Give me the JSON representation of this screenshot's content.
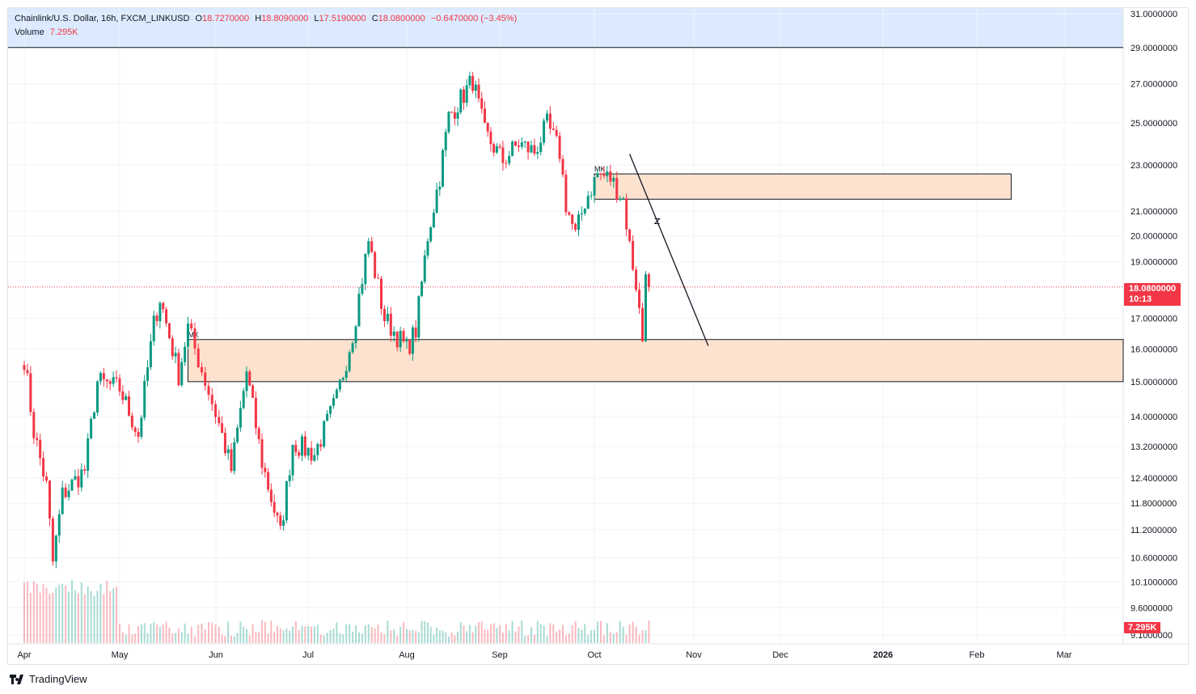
{
  "header": {
    "symbol_line": "Chainlink/U.S. Dollar, 16h, FXCM_LINKUSD",
    "open_label": "O",
    "open": "18.7270000",
    "high_label": "H",
    "high": "18.8090000",
    "low_label": "L",
    "low": "17.5190000",
    "close_label": "C",
    "close": "18.0800000",
    "change": "−0.6470000 (−3.45%)",
    "volume_label": "Volume",
    "volume": "7.295K"
  },
  "price_tag": {
    "price": "18.0800000",
    "countdown": "10:13"
  },
  "volume_tag": "7.295K",
  "footer": {
    "brand": "TradingView",
    "logo": "TV-logo-icon"
  },
  "colors": {
    "up": "#089981",
    "down": "#f23645",
    "zone": "#fde3cf",
    "header_bg": "#dbeafe"
  },
  "chart_data": {
    "type": "candlestick",
    "scale": "log",
    "ylim": [
      9.1,
      31.0
    ],
    "y_ticks": [
      "31.0000000",
      "29.0000000",
      "27.0000000",
      "25.0000000",
      "23.0000000",
      "21.0000000",
      "20.0000000",
      "19.0000000",
      "17.0000000",
      "16.0000000",
      "15.0000000",
      "14.0000000",
      "13.2000000",
      "12.4000000",
      "11.8000000",
      "11.2000000",
      "10.6000000",
      "10.1000000",
      "9.6000000",
      "9.1000000"
    ],
    "x_ticks": [
      "Apr",
      "May",
      "Jun",
      "Jul",
      "Aug",
      "Sep",
      "Oct",
      "Nov",
      "Dec",
      "2026",
      "Feb",
      "Mar"
    ],
    "last_close": 18.08,
    "key_points": [
      {
        "date": "Apr 1",
        "price": 15.7
      },
      {
        "date": "Apr 4",
        "price": 13.6
      },
      {
        "date": "Apr 8",
        "price": 12.2
      },
      {
        "date": "Apr 10",
        "price": 10.5
      },
      {
        "date": "Apr 13",
        "price": 12.0
      },
      {
        "date": "Apr 20",
        "price": 12.6
      },
      {
        "date": "Apr 24",
        "price": 15.0
      },
      {
        "date": "May 1",
        "price": 14.8
      },
      {
        "date": "May 7",
        "price": 13.5
      },
      {
        "date": "May 12",
        "price": 16.8
      },
      {
        "date": "May 14",
        "price": 17.7
      },
      {
        "date": "May 20",
        "price": 15.2
      },
      {
        "date": "May 23",
        "price": 16.7
      },
      {
        "date": "Jun 2",
        "price": 13.8
      },
      {
        "date": "Jun 6",
        "price": 12.6
      },
      {
        "date": "Jun 11",
        "price": 15.3
      },
      {
        "date": "Jun 16",
        "price": 12.8
      },
      {
        "date": "Jun 22",
        "price": 11.1
      },
      {
        "date": "Jun 26",
        "price": 13.3
      },
      {
        "date": "Jul 3",
        "price": 13.0
      },
      {
        "date": "Jul 10",
        "price": 14.5
      },
      {
        "date": "Jul 15",
        "price": 16.5
      },
      {
        "date": "Jul 20",
        "price": 19.8
      },
      {
        "date": "Jul 25",
        "price": 17.0
      },
      {
        "date": "Aug 1",
        "price": 16.0
      },
      {
        "date": "Aug 4",
        "price": 16.6
      },
      {
        "date": "Aug 8",
        "price": 20.0
      },
      {
        "date": "Aug 12",
        "price": 22.5
      },
      {
        "date": "Aug 15",
        "price": 25.3
      },
      {
        "date": "Aug 19",
        "price": 26.2
      },
      {
        "date": "Aug 23",
        "price": 27.2
      },
      {
        "date": "Aug 27",
        "price": 24.5
      },
      {
        "date": "Sep 2",
        "price": 23.2
      },
      {
        "date": "Sep 7",
        "price": 24.0
      },
      {
        "date": "Sep 12",
        "price": 23.6
      },
      {
        "date": "Sep 16",
        "price": 24.9
      },
      {
        "date": "Sep 20",
        "price": 23.6
      },
      {
        "date": "Sep 22",
        "price": 21.3
      },
      {
        "date": "Sep 25",
        "price": 20.0
      },
      {
        "date": "Sep 28",
        "price": 21.4
      },
      {
        "date": "Oct 2",
        "price": 22.6
      },
      {
        "date": "Oct 6",
        "price": 22.4
      },
      {
        "date": "Oct 10",
        "price": 21.5
      },
      {
        "date": "Oct 12",
        "price": 19.6
      },
      {
        "date": "Oct 14",
        "price": 18.2
      },
      {
        "date": "Oct 16",
        "price": 16.3
      },
      {
        "date": "Oct 17",
        "price": 18.9
      },
      {
        "date": "Oct 18",
        "price": 18.08
      }
    ],
    "volume_last": "7.295K",
    "annotations": [
      {
        "type": "zone",
        "label": "MK",
        "from": "May 23",
        "to": "extends right",
        "price_low": 15.0,
        "price_high": 16.3
      },
      {
        "type": "zone",
        "label": "MK",
        "from": "Oct 1",
        "to": "Feb 12",
        "price_low": 21.5,
        "price_high": 22.6
      },
      {
        "type": "trendline",
        "from_date": "Oct 12",
        "from_price": 23.5,
        "to_date": "Nov 6",
        "to_price": 16.1
      },
      {
        "type": "hline",
        "price": 29.0
      }
    ]
  }
}
